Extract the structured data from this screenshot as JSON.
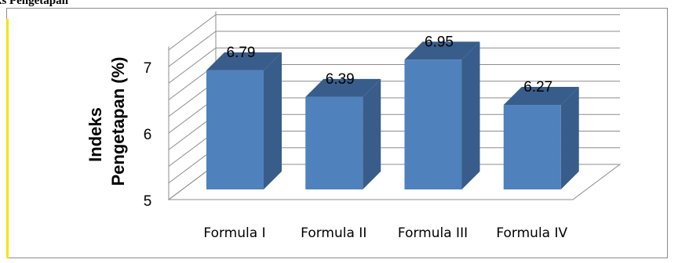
{
  "page": {
    "clipped_heading": "ks Pengetapan"
  },
  "chart_data": {
    "type": "bar",
    "style": "3d-column",
    "categories": [
      "Formula I",
      "Formula II",
      "Formula III",
      "Formula IV"
    ],
    "values": [
      6.79,
      6.39,
      6.95,
      6.27
    ],
    "value_labels": [
      "6.79",
      "6.39",
      "6.95",
      "6.27"
    ],
    "title": "",
    "xlabel": "",
    "ylabel_lines": [
      "Indeks",
      "Pengetapan (%)"
    ],
    "ylim": [
      5,
      7.3
    ],
    "yticks": [
      5,
      6,
      7
    ],
    "ytick_labels": [
      "5",
      "6",
      "7"
    ],
    "grid": true,
    "legend": "none",
    "colors": {
      "front": "#4f81bd",
      "side": "#385d8a",
      "top": "#385d8a",
      "grid": "#8c8c8c"
    }
  }
}
